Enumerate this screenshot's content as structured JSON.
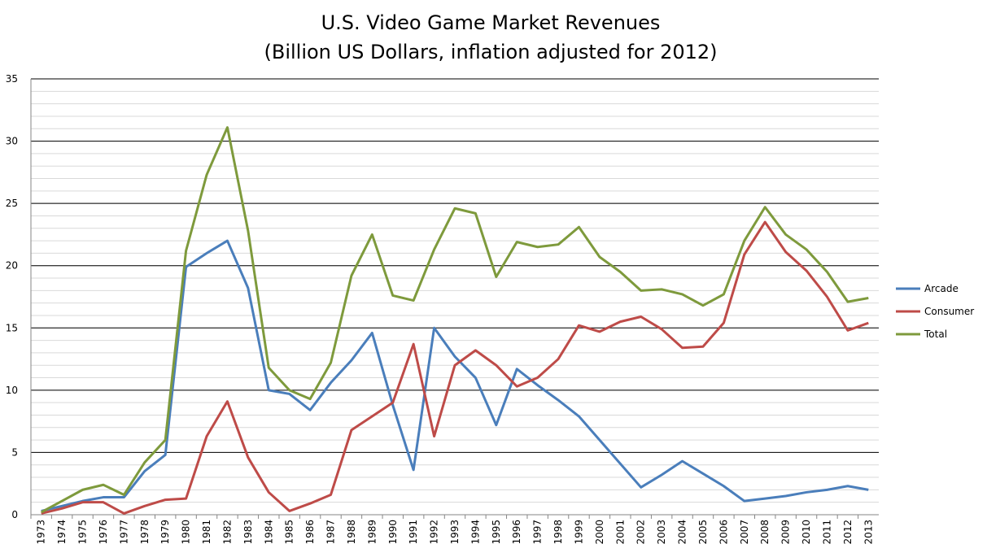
{
  "chart_data": {
    "type": "line",
    "title": "U.S. Video Game Market Revenues",
    "subtitle": "(Billion US Dollars, inflation adjusted for 2012)",
    "categories": [
      "1973",
      "1974",
      "1975",
      "1976",
      "1977",
      "1978",
      "1979",
      "1980",
      "1981",
      "1982",
      "1983",
      "1984",
      "1985",
      "1986",
      "1987",
      "1988",
      "1989",
      "1990",
      "1991",
      "1992",
      "1993",
      "1994",
      "1995",
      "1996",
      "1997",
      "1998",
      "1999",
      "2000",
      "2001",
      "2002",
      "2003",
      "2004",
      "2005",
      "2006",
      "2007",
      "2008",
      "2009",
      "2010",
      "2011",
      "2012",
      "2013"
    ],
    "series": [
      {
        "name": "Arcade",
        "color": "#4a7ebb",
        "values": [
          0.3,
          0.7,
          1.1,
          1.4,
          1.4,
          3.5,
          4.8,
          19.9,
          21.0,
          22.0,
          18.2,
          10.0,
          9.7,
          8.4,
          10.6,
          12.4,
          14.6,
          8.8,
          3.6,
          15.0,
          12.7,
          11.0,
          7.2,
          11.7,
          10.4,
          9.2,
          7.9,
          6.0,
          4.1,
          2.2,
          3.2,
          4.3,
          3.3,
          2.3,
          1.1,
          1.3,
          1.5,
          1.8,
          2.0,
          2.3,
          2.0
        ]
      },
      {
        "name": "Consumer",
        "color": "#be4b48",
        "values": [
          0.1,
          0.5,
          1.0,
          1.0,
          0.1,
          0.7,
          1.2,
          1.3,
          6.3,
          9.1,
          4.6,
          1.8,
          0.3,
          0.9,
          1.6,
          6.8,
          7.9,
          9.0,
          13.7,
          6.3,
          12.0,
          13.2,
          12.0,
          10.3,
          11.0,
          12.5,
          15.2,
          14.7,
          15.5,
          15.9,
          14.9,
          13.4,
          13.5,
          15.4,
          20.9,
          23.5,
          21.1,
          19.6,
          17.5,
          14.8,
          15.4
        ]
      },
      {
        "name": "Total",
        "color": "#7e9a3c",
        "values": [
          0.2,
          1.1,
          2.0,
          2.4,
          1.6,
          4.2,
          6.0,
          21.2,
          27.3,
          31.1,
          22.8,
          11.8,
          10.0,
          9.3,
          12.2,
          19.2,
          22.5,
          17.6,
          17.2,
          21.3,
          24.6,
          24.2,
          19.1,
          21.9,
          21.5,
          21.7,
          23.1,
          20.7,
          19.5,
          18.0,
          18.1,
          17.7,
          16.8,
          17.7,
          22.0,
          24.7,
          22.5,
          21.3,
          19.5,
          17.1,
          17.4
        ]
      }
    ],
    "ylim": [
      0,
      35
    ],
    "yticks": [
      0,
      5,
      10,
      15,
      20,
      25,
      30,
      35
    ],
    "grid": true,
    "minor_grid_step": 1,
    "legend": "right"
  }
}
